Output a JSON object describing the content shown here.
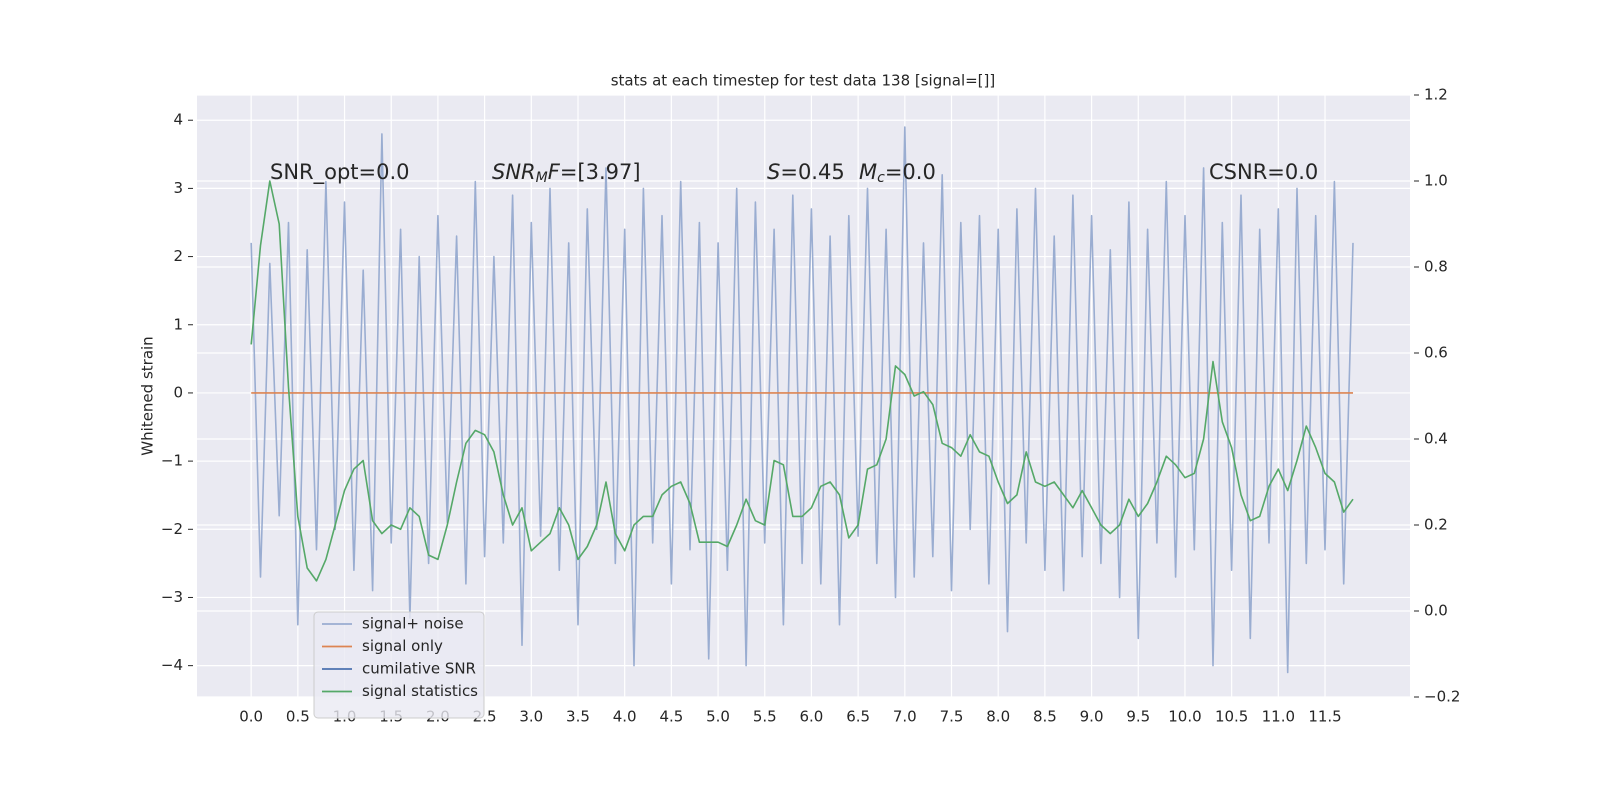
{
  "chart_data": {
    "type": "line",
    "title": "stats at each timestep for test data 138 [signal=[]]",
    "ylabel": "Whitened strain",
    "annotations": [
      [
        {
          "text": "SNR_opt=0.0",
          "style": "normal"
        }
      ],
      [
        {
          "text": "SNR",
          "style": "italic"
        },
        {
          "text": "M",
          "style": "sub"
        },
        {
          "text": "F",
          "style": "italic"
        },
        {
          "text": "=[3.97]",
          "style": "normal"
        }
      ],
      [
        {
          "text": "S",
          "style": "italic"
        },
        {
          "text": "=0.45",
          "style": "normal"
        }
      ],
      [
        {
          "text": "M",
          "style": "italic"
        },
        {
          "text": "c",
          "style": "sub"
        },
        {
          "text": "=0.0",
          "style": "normal"
        }
      ],
      [
        {
          "text": "CSNR=0.0",
          "style": "normal"
        }
      ]
    ],
    "x": [
      0.0,
      0.1,
      0.2,
      0.3,
      0.4,
      0.5,
      0.6,
      0.7,
      0.8,
      0.9,
      1.0,
      1.1,
      1.2,
      1.3,
      1.4,
      1.5,
      1.6,
      1.7,
      1.8,
      1.9,
      2.0,
      2.1,
      2.2,
      2.3,
      2.4,
      2.5,
      2.6,
      2.7,
      2.8,
      2.9,
      3.0,
      3.1,
      3.2,
      3.3,
      3.4,
      3.5,
      3.6,
      3.7,
      3.8,
      3.9,
      4.0,
      4.1,
      4.2,
      4.3,
      4.4,
      4.5,
      4.6,
      4.7,
      4.8,
      4.9,
      5.0,
      5.1,
      5.2,
      5.3,
      5.4,
      5.5,
      5.6,
      5.7,
      5.8,
      5.9,
      6.0,
      6.1,
      6.2,
      6.3,
      6.4,
      6.5,
      6.6,
      6.7,
      6.8,
      6.9,
      7.0,
      7.1,
      7.2,
      7.3,
      7.4,
      7.5,
      7.6,
      7.7,
      7.8,
      7.9,
      8.0,
      8.1,
      8.2,
      8.3,
      8.4,
      8.5,
      8.6,
      8.7,
      8.8,
      8.9,
      9.0,
      9.1,
      9.2,
      9.3,
      9.4,
      9.5,
      9.6,
      9.7,
      9.8,
      9.9,
      10.0,
      10.1,
      10.2,
      10.3,
      10.4,
      10.5,
      10.6,
      10.7,
      10.8,
      10.9,
      11.0,
      11.1,
      11.2,
      11.3,
      11.4,
      11.5,
      11.6,
      11.7,
      11.8
    ],
    "series": [
      {
        "name": "signal+ noise",
        "color": "#9aadd1",
        "values": [
          2.2,
          -2.7,
          1.9,
          -1.8,
          2.5,
          -3.4,
          2.1,
          -2.3,
          3.1,
          -2.0,
          2.8,
          -2.6,
          1.8,
          -2.9,
          3.8,
          -2.2,
          2.4,
          -3.3,
          2.0,
          -2.5,
          2.6,
          -1.9,
          2.3,
          -2.8,
          3.1,
          -2.4,
          2.0,
          -2.2,
          2.9,
          -3.7,
          2.5,
          -2.1,
          3.0,
          -2.6,
          2.2,
          -3.4,
          2.7,
          -2.0,
          3.3,
          -2.5,
          2.4,
          -4.0,
          3.0,
          -2.2,
          2.6,
          -2.8,
          3.1,
          -2.3,
          2.5,
          -3.9,
          2.2,
          -2.6,
          3.0,
          -4.0,
          2.8,
          -2.2,
          2.4,
          -3.4,
          2.9,
          -2.5,
          2.7,
          -2.8,
          2.3,
          -3.4,
          2.6,
          -2.1,
          3.0,
          -2.5,
          2.4,
          -3.0,
          3.9,
          -2.7,
          2.2,
          -2.4,
          3.2,
          -2.9,
          2.5,
          -2.0,
          2.6,
          -2.8,
          2.4,
          -3.5,
          2.7,
          -2.2,
          3.0,
          -2.6,
          2.3,
          -2.9,
          2.9,
          -2.4,
          2.6,
          -2.5,
          2.1,
          -3.0,
          2.8,
          -3.6,
          2.4,
          -2.2,
          3.1,
          -2.7,
          2.6,
          -2.3,
          3.3,
          -4.0,
          2.5,
          -2.6,
          2.9,
          -3.6,
          2.4,
          -2.2,
          2.7,
          -4.1,
          3.0,
          -2.5,
          2.6,
          -2.3,
          3.1,
          -2.8,
          2.2
        ]
      },
      {
        "name": "signal only",
        "color": "#dd8452",
        "x": [
          0.0,
          11.8
        ],
        "values": [
          0,
          0
        ]
      },
      {
        "name": "cumilative SNR",
        "color": "#4c72b0",
        "x": [],
        "values": []
      },
      {
        "name": "signal statistics",
        "color": "#55a868",
        "axis": "y2",
        "values": [
          0.62,
          0.85,
          1.0,
          0.9,
          0.52,
          0.22,
          0.1,
          0.07,
          0.12,
          0.2,
          0.28,
          0.33,
          0.35,
          0.21,
          0.18,
          0.2,
          0.19,
          0.24,
          0.22,
          0.13,
          0.12,
          0.2,
          0.3,
          0.39,
          0.42,
          0.41,
          0.37,
          0.27,
          0.2,
          0.24,
          0.14,
          0.16,
          0.18,
          0.24,
          0.2,
          0.12,
          0.15,
          0.2,
          0.3,
          0.18,
          0.14,
          0.2,
          0.22,
          0.22,
          0.27,
          0.29,
          0.3,
          0.25,
          0.16,
          0.16,
          0.16,
          0.15,
          0.2,
          0.26,
          0.21,
          0.2,
          0.35,
          0.34,
          0.22,
          0.22,
          0.24,
          0.29,
          0.3,
          0.27,
          0.17,
          0.2,
          0.33,
          0.34,
          0.4,
          0.57,
          0.55,
          0.5,
          0.51,
          0.48,
          0.39,
          0.38,
          0.36,
          0.41,
          0.37,
          0.36,
          0.3,
          0.25,
          0.27,
          0.37,
          0.3,
          0.29,
          0.3,
          0.27,
          0.24,
          0.28,
          0.24,
          0.2,
          0.18,
          0.2,
          0.26,
          0.22,
          0.25,
          0.3,
          0.36,
          0.34,
          0.31,
          0.32,
          0.4,
          0.58,
          0.44,
          0.38,
          0.27,
          0.21,
          0.22,
          0.29,
          0.33,
          0.28,
          0.35,
          0.43,
          0.38,
          0.32,
          0.3,
          0.23,
          0.26
        ]
      }
    ],
    "xlim": [
      -0.58,
      12.41
    ],
    "xticks": [
      {
        "value": 0,
        "label": "0.0"
      },
      {
        "value": 0.5,
        "label": "0.5"
      },
      {
        "value": 1,
        "label": "1.0"
      },
      {
        "value": 1.5,
        "label": "1.5"
      },
      {
        "value": 2,
        "label": "2.0"
      },
      {
        "value": 2.5,
        "label": "2.5"
      },
      {
        "value": 3,
        "label": "3.0"
      },
      {
        "value": 3.5,
        "label": "3.5"
      },
      {
        "value": 4,
        "label": "4.0"
      },
      {
        "value": 4.5,
        "label": "4.5"
      },
      {
        "value": 5,
        "label": "5.0"
      },
      {
        "value": 5.5,
        "label": "5.5"
      },
      {
        "value": 6,
        "label": "6.0"
      },
      {
        "value": 6.5,
        "label": "6.5"
      },
      {
        "value": 7,
        "label": "7.0"
      },
      {
        "value": 7.5,
        "label": "7.5"
      },
      {
        "value": 8,
        "label": "8.0"
      },
      {
        "value": 8.5,
        "label": "8.5"
      },
      {
        "value": 9,
        "label": "9.0"
      },
      {
        "value": 9.5,
        "label": "9.5"
      },
      {
        "value": 10,
        "label": "10.0"
      },
      {
        "value": 10.5,
        "label": "10.5"
      },
      {
        "value": 11,
        "label": "11.0"
      },
      {
        "value": 11.5,
        "label": "11.5"
      }
    ],
    "ylim": [
      -4.46,
      4.37
    ],
    "yticks": [
      {
        "value": -4,
        "label": "−4"
      },
      {
        "value": -3,
        "label": "−3"
      },
      {
        "value": -2,
        "label": "−2"
      },
      {
        "value": -1,
        "label": "−1"
      },
      0,
      1,
      2,
      3,
      4
    ],
    "y2lim": [
      -0.2,
      1.2
    ],
    "y2ticks": [
      {
        "value": -0.2,
        "label": "−0.2"
      },
      {
        "value": 0,
        "label": "0.0"
      },
      {
        "value": 0.2,
        "label": "0.2"
      },
      {
        "value": 0.4,
        "label": "0.4"
      },
      {
        "value": 0.6,
        "label": "0.6"
      },
      {
        "value": 0.8,
        "label": "0.8"
      },
      {
        "value": 1,
        "label": "1.0"
      },
      {
        "value": 1.2,
        "label": "1.2"
      }
    ],
    "grid": true,
    "legend": "lower left"
  }
}
